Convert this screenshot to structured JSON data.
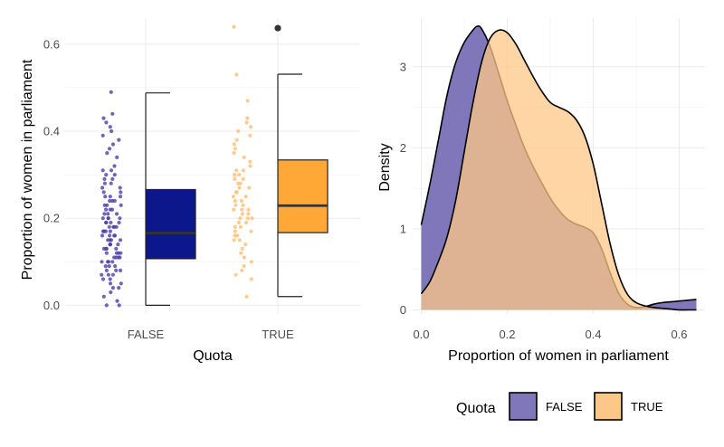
{
  "colors": {
    "false_box": "#0d178c",
    "true_box": "#ffa838",
    "false_pt": "#4a40a8",
    "true_pt": "#ffc27a",
    "false_dens": "#7f77b9",
    "true_dens": "#fdc787",
    "outlier": "#333333",
    "grid": "#ebebeb"
  },
  "chart_data": [
    {
      "type": "box",
      "title": "",
      "xlabel": "Quota",
      "ylabel": "Proportion of women in parliament",
      "categories": [
        "FALSE",
        "TRUE"
      ],
      "ylim": [
        -0.02,
        0.66
      ],
      "yticks": [
        0.0,
        0.2,
        0.4,
        0.6
      ],
      "ytick_labels": [
        "0.0",
        "0.2",
        "0.4",
        "0.6"
      ],
      "boxes": [
        {
          "name": "FALSE",
          "min": 0.0,
          "q1": 0.107,
          "median": 0.166,
          "q3": 0.266,
          "max": 0.488,
          "outliers": []
        },
        {
          "name": "TRUE",
          "min": 0.02,
          "q1": 0.167,
          "median": 0.229,
          "q3": 0.334,
          "max": 0.531,
          "outliers": [
            0.637
          ]
        }
      ],
      "jitter_points": {
        "FALSE": [
          0.49,
          0.44,
          0.43,
          0.42,
          0.41,
          0.4,
          0.39,
          0.38,
          0.37,
          0.36,
          0.35,
          0.34,
          0.32,
          0.31,
          0.31,
          0.3,
          0.3,
          0.29,
          0.29,
          0.28,
          0.28,
          0.27,
          0.27,
          0.26,
          0.26,
          0.25,
          0.25,
          0.25,
          0.24,
          0.24,
          0.24,
          0.23,
          0.23,
          0.23,
          0.22,
          0.22,
          0.22,
          0.21,
          0.21,
          0.21,
          0.2,
          0.2,
          0.2,
          0.2,
          0.19,
          0.19,
          0.19,
          0.19,
          0.18,
          0.18,
          0.18,
          0.18,
          0.17,
          0.17,
          0.17,
          0.17,
          0.16,
          0.16,
          0.16,
          0.16,
          0.15,
          0.15,
          0.15,
          0.15,
          0.14,
          0.14,
          0.14,
          0.14,
          0.13,
          0.13,
          0.13,
          0.13,
          0.12,
          0.12,
          0.12,
          0.12,
          0.11,
          0.11,
          0.11,
          0.11,
          0.1,
          0.1,
          0.1,
          0.1,
          0.09,
          0.09,
          0.09,
          0.08,
          0.08,
          0.08,
          0.07,
          0.07,
          0.07,
          0.06,
          0.06,
          0.05,
          0.05,
          0.04,
          0.04,
          0.03,
          0.02,
          0.01,
          0.0,
          0.0
        ],
        "TRUE": [
          0.64,
          0.53,
          0.47,
          0.43,
          0.42,
          0.41,
          0.4,
          0.39,
          0.38,
          0.37,
          0.36,
          0.35,
          0.34,
          0.33,
          0.32,
          0.31,
          0.31,
          0.3,
          0.3,
          0.29,
          0.29,
          0.28,
          0.28,
          0.27,
          0.27,
          0.26,
          0.26,
          0.25,
          0.25,
          0.24,
          0.24,
          0.23,
          0.23,
          0.22,
          0.22,
          0.22,
          0.21,
          0.21,
          0.2,
          0.2,
          0.2,
          0.19,
          0.19,
          0.18,
          0.18,
          0.17,
          0.17,
          0.16,
          0.16,
          0.15,
          0.15,
          0.14,
          0.13,
          0.12,
          0.11,
          0.1,
          0.09,
          0.08,
          0.07,
          0.06,
          0.02
        ]
      }
    },
    {
      "type": "area",
      "title": "",
      "xlabel": "Proportion of women in parliament",
      "ylabel": "Density",
      "xlim": [
        -0.02,
        0.66
      ],
      "ylim": [
        -0.05,
        3.6
      ],
      "xticks": [
        0.0,
        0.2,
        0.4,
        0.6
      ],
      "xtick_labels": [
        "0.0",
        "0.2",
        "0.4",
        "0.6"
      ],
      "yticks": [
        0,
        1,
        2,
        3
      ],
      "ytick_labels": [
        "0",
        "1",
        "2",
        "3"
      ],
      "series": [
        {
          "name": "FALSE",
          "x": [
            0.0,
            0.02,
            0.04,
            0.06,
            0.08,
            0.1,
            0.12,
            0.13,
            0.14,
            0.16,
            0.18,
            0.2,
            0.22,
            0.24,
            0.26,
            0.28,
            0.3,
            0.32,
            0.34,
            0.36,
            0.38,
            0.4,
            0.42,
            0.44,
            0.46,
            0.48,
            0.5,
            0.52,
            0.54,
            0.56,
            0.58,
            0.6,
            0.62,
            0.64
          ],
          "values": [
            1.05,
            1.55,
            2.1,
            2.65,
            3.05,
            3.3,
            3.45,
            3.5,
            3.47,
            3.25,
            2.92,
            2.58,
            2.28,
            2.0,
            1.77,
            1.57,
            1.38,
            1.23,
            1.12,
            1.06,
            1.02,
            0.95,
            0.75,
            0.45,
            0.2,
            0.07,
            0.03,
            0.04,
            0.07,
            0.09,
            0.1,
            0.11,
            0.12,
            0.13
          ]
        },
        {
          "name": "TRUE",
          "x": [
            0.0,
            0.02,
            0.04,
            0.06,
            0.08,
            0.1,
            0.12,
            0.14,
            0.16,
            0.18,
            0.2,
            0.22,
            0.24,
            0.26,
            0.28,
            0.3,
            0.32,
            0.34,
            0.36,
            0.38,
            0.4,
            0.42,
            0.44,
            0.46,
            0.48,
            0.5,
            0.52,
            0.54,
            0.56,
            0.58,
            0.6,
            0.62,
            0.64
          ],
          "values": [
            0.2,
            0.35,
            0.6,
            0.9,
            1.35,
            1.95,
            2.55,
            3.05,
            3.35,
            3.45,
            3.42,
            3.28,
            3.08,
            2.88,
            2.7,
            2.56,
            2.5,
            2.45,
            2.35,
            2.15,
            1.8,
            1.3,
            0.8,
            0.42,
            0.19,
            0.09,
            0.05,
            0.03,
            0.02,
            0.01,
            0.0,
            0.0,
            0.0
          ]
        }
      ],
      "legend": {
        "title": "Quota",
        "entries": [
          "FALSE",
          "TRUE"
        ],
        "position": "bottom"
      }
    }
  ]
}
